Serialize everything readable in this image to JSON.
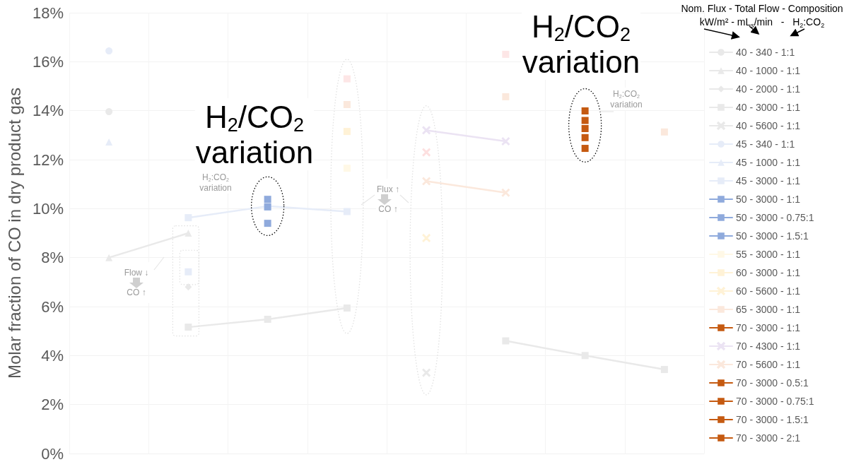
{
  "chart_data": {
    "type": "line",
    "ylabel": "Molar fraction of CO in dry product gas",
    "legend_title": "Nom. Flux - Total Flow - Composition\nkW/m² - mL$_{s}$/min   -   H$_{2}$:CO$_{2}$",
    "categories": [
      null,
      null,
      null,
      null,
      null,
      null,
      null,
      null
    ],
    "ylim": [
      0,
      18
    ],
    "yticks": [
      {
        "value": 0,
        "label": "0%"
      },
      {
        "value": 2,
        "label": "2%"
      },
      {
        "value": 4,
        "label": "4%"
      },
      {
        "value": 6,
        "label": "6%"
      },
      {
        "value": 8,
        "label": "8%"
      },
      {
        "value": 10,
        "label": "10%"
      },
      {
        "value": 12,
        "label": "12%"
      },
      {
        "value": 14,
        "label": "14%"
      },
      {
        "value": 16,
        "label": "16%"
      },
      {
        "value": 18,
        "label": "18%"
      }
    ],
    "grid": true,
    "legend": "right",
    "line_style": "solid",
    "series": [
      {
        "name": "40 - 340 - 1:1",
        "color": "#e9e9e9",
        "marker": "circle",
        "values": [
          13.96,
          null,
          null,
          null,
          null,
          null,
          null,
          null
        ]
      },
      {
        "name": "40 - 1000 - 1:1",
        "color": "#e9e9e9",
        "marker": "triangle",
        "values": [
          8.0,
          9.0,
          null,
          null,
          null,
          null,
          null,
          null
        ]
      },
      {
        "name": "40 - 2000 - 1:1",
        "color": "#e9e9e9",
        "marker": "diamond",
        "values": [
          null,
          6.8,
          null,
          null,
          null,
          null,
          null,
          null
        ]
      },
      {
        "name": "40 - 3000 - 1:1",
        "color": "#e9e9e9",
        "marker": "square",
        "values": [
          null,
          5.16,
          5.48,
          5.94,
          null,
          4.6,
          4.0,
          3.43
        ]
      },
      {
        "name": "40 - 5600 - 1:1",
        "color": "#e9e9e9",
        "marker": "cross",
        "values": [
          null,
          null,
          null,
          null,
          3.3,
          null,
          null,
          null
        ]
      },
      {
        "name": "45 - 340 - 1:1",
        "color": "#e6ecf8",
        "marker": "circle",
        "values": [
          16.44,
          null,
          null,
          null,
          null,
          null,
          null,
          null
        ]
      },
      {
        "name": "45 - 1000 - 1:1",
        "color": "#e6ecf8",
        "marker": "triangle",
        "values": [
          12.72,
          null,
          null,
          null,
          null,
          null,
          null,
          null
        ]
      },
      {
        "name": "45 - 3000 - 1:1",
        "color": "#e6ecf8",
        "marker": "square",
        "values": [
          null,
          9.63,
          10.1,
          9.88,
          null,
          null,
          null,
          null
        ]
      },
      {
        "color": "#e6ecf8",
        "marker": "square",
        "values": [
          null,
          7.42,
          null,
          null,
          null,
          null,
          null,
          null
        ]
      },
      {
        "name": "50 - 3000 - 1:1",
        "color": "#8faadc",
        "marker": "square",
        "values": [
          null,
          null,
          10.07,
          null,
          null,
          null,
          null,
          null
        ]
      },
      {
        "name": "50 - 3000 - 0.75:1",
        "color": "#8faadc",
        "marker": "square",
        "values": [
          null,
          null,
          10.38,
          null,
          null,
          null,
          null,
          null
        ]
      },
      {
        "name": "50 - 3000 - 1.5:1",
        "color": "#8faadc",
        "marker": "square",
        "values": [
          null,
          null,
          9.4,
          null,
          null,
          null,
          null,
          null
        ]
      },
      {
        "name": "55 - 3000 - 1:1",
        "color": "#fff8e6",
        "marker": "square",
        "values": [
          null,
          null,
          null,
          11.65,
          null,
          null,
          null,
          null
        ]
      },
      {
        "name": "60 - 3000 - 1:1",
        "color": "#fff2d6",
        "marker": "square",
        "values": [
          null,
          null,
          null,
          13.15,
          null,
          null,
          null,
          null
        ]
      },
      {
        "name": "60 - 5600 - 1:1",
        "color": "#fff2d6",
        "marker": "cross",
        "values": [
          null,
          null,
          null,
          null,
          8.8,
          null,
          null,
          null
        ]
      },
      {
        "name": "65 - 3000 - 1:1",
        "color": "#fbe8dc",
        "marker": "square",
        "values": [
          null,
          null,
          null,
          14.25,
          null,
          14.57,
          null,
          13.13
        ]
      },
      {
        "type": "scatter",
        "color": "#fde0e0",
        "marker": "square",
        "values": [
          null,
          null,
          null,
          15.3,
          null,
          16.3,
          null,
          null
        ]
      },
      {
        "name": "70 - 3000 - 1:1",
        "color": "#c55a11",
        "marker": "square",
        "values": [
          null,
          null,
          null,
          null,
          null,
          null,
          13.6,
          null
        ]
      },
      {
        "name": "70 - 4300 - 1:1",
        "color": "#ebe3f3",
        "marker": "cross",
        "values": [
          null,
          null,
          null,
          null,
          13.2,
          12.75,
          null,
          null
        ]
      },
      {
        "color": "#fde0e0",
        "marker": "cross",
        "values": [
          null,
          null,
          null,
          null,
          12.3,
          null,
          null,
          null
        ]
      },
      {
        "name": "70 - 5600 - 1:1",
        "color": "#fbe8dc",
        "marker": "cross",
        "values": [
          null,
          null,
          null,
          null,
          11.12,
          10.65,
          null,
          null
        ]
      },
      {
        "name": "70 - 3000 - 0.5:1",
        "color": "#c55a11",
        "marker": "square",
        "values": [
          null,
          null,
          null,
          null,
          null,
          null,
          13.27,
          null
        ]
      },
      {
        "name": "70 - 3000 - 0.75:1",
        "color": "#c55a11",
        "marker": "square",
        "values": [
          null,
          null,
          null,
          null,
          null,
          null,
          13.99,
          null
        ]
      },
      {
        "name": "70 - 3000 - 1.5:1",
        "color": "#c55a11",
        "marker": "square",
        "values": [
          null,
          null,
          null,
          null,
          null,
          null,
          12.9,
          null
        ]
      },
      {
        "name": "70 - 3000 - 2:1",
        "color": "#c55a11",
        "marker": "square",
        "values": [
          null,
          null,
          null,
          null,
          null,
          null,
          12.46,
          null
        ]
      }
    ],
    "annotations": [
      "H$_{2}$/CO$_{2}$\nvariation",
      "H$_{2}$/CO$_{2}$\nvariation",
      "H$_{2}$:CO$_{2}$\nvariation",
      "H$_{2}$:CO$_{2}$\nvariation",
      "Flow ↓\nCO ↑",
      "Flux ↑\nCO ↑"
    ]
  }
}
